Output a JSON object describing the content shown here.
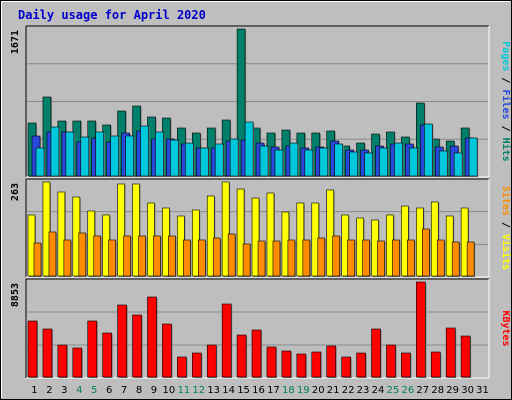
{
  "title": "Daily usage for April 2020",
  "colors": {
    "background": "#bebebe",
    "title": "#0000cc",
    "hits": "#00c8dc",
    "files": "#2848dc",
    "pages": "#00806a",
    "visits": "#ffff00",
    "sites": "#ff8c00",
    "kbytes": "#ff0000",
    "weekend_label": "#008060",
    "weekday_label": "#000000"
  },
  "chart_data": [
    {
      "type": "bar",
      "name": "hits-panel",
      "ymax": 1671,
      "ymax_label": "1671",
      "ylabel_parts": [
        {
          "text": "Pages",
          "color": "#00c8dc"
        },
        {
          "text": " / ",
          "color": "#000000"
        },
        {
          "text": "Files",
          "color": "#2848dc"
        },
        {
          "text": " / ",
          "color": "#000000"
        },
        {
          "text": "Hits",
          "color": "#00806a"
        }
      ],
      "categories": [
        "1",
        "2",
        "3",
        "4",
        "5",
        "6",
        "7",
        "8",
        "9",
        "10",
        "11",
        "12",
        "13",
        "14",
        "15",
        "16",
        "17",
        "18",
        "19",
        "20",
        "21",
        "22",
        "23",
        "24",
        "25",
        "26",
        "27",
        "28",
        "29",
        "30",
        "31"
      ],
      "weekend_days": [
        "4",
        "5",
        "11",
        "12",
        "18",
        "19",
        "25",
        "26"
      ],
      "series": [
        {
          "name": "Hits",
          "values": [
            600,
            900,
            630,
            630,
            620,
            580,
            740,
            800,
            670,
            660,
            550,
            490,
            550,
            640,
            1671,
            550,
            490,
            520,
            490,
            490,
            510,
            340,
            370,
            480,
            500,
            440,
            830,
            420,
            400,
            550,
            0
          ]
        },
        {
          "name": "Files",
          "values": [
            460,
            500,
            500,
            390,
            430,
            390,
            490,
            510,
            420,
            420,
            360,
            320,
            320,
            400,
            410,
            370,
            330,
            340,
            320,
            330,
            400,
            290,
            300,
            340,
            360,
            360,
            580,
            330,
            340,
            430,
            0
          ]
        },
        {
          "name": "Pages",
          "values": [
            320,
            560,
            500,
            440,
            500,
            450,
            450,
            570,
            500,
            410,
            380,
            320,
            360,
            420,
            610,
            340,
            300,
            380,
            290,
            320,
            360,
            270,
            260,
            320,
            380,
            320,
            590,
            280,
            260,
            430,
            0
          ]
        }
      ]
    },
    {
      "type": "bar",
      "name": "visits-panel",
      "ymax": 263,
      "ymax_label": "263",
      "ylabel_parts": [
        {
          "text": "Sites",
          "color": "#ff8c00"
        },
        {
          "text": " / ",
          "color": "#000000"
        },
        {
          "text": "Visits",
          "color": "#ffff00"
        }
      ],
      "categories": [
        "1",
        "2",
        "3",
        "4",
        "5",
        "6",
        "7",
        "8",
        "9",
        "10",
        "11",
        "12",
        "13",
        "14",
        "15",
        "16",
        "17",
        "18",
        "19",
        "20",
        "21",
        "22",
        "23",
        "24",
        "25",
        "26",
        "27",
        "28",
        "29",
        "30",
        "31"
      ],
      "series": [
        {
          "name": "Visits",
          "values": [
            170,
            262,
            236,
            222,
            182,
            170,
            258,
            258,
            205,
            190,
            168,
            186,
            224,
            263,
            244,
            218,
            232,
            180,
            204,
            204,
            240,
            172,
            162,
            156,
            172,
            196,
            190,
            206,
            168,
            190,
            0
          ]
        },
        {
          "name": "Sites",
          "values": [
            92,
            122,
            100,
            120,
            112,
            100,
            112,
            112,
            112,
            112,
            100,
            100,
            106,
            118,
            90,
            98,
            98,
            100,
            100,
            106,
            112,
            100,
            100,
            98,
            100,
            100,
            132,
            100,
            96,
            96,
            0
          ]
        }
      ]
    },
    {
      "type": "bar",
      "name": "kbytes-panel",
      "ymax": 8853,
      "ymax_label": "8853",
      "ylabel_parts": [
        {
          "text": "KBytes",
          "color": "#ff0000"
        }
      ],
      "categories": [
        "1",
        "2",
        "3",
        "4",
        "5",
        "6",
        "7",
        "8",
        "9",
        "10",
        "11",
        "12",
        "13",
        "14",
        "15",
        "16",
        "17",
        "18",
        "19",
        "20",
        "21",
        "22",
        "23",
        "24",
        "25",
        "26",
        "27",
        "28",
        "29",
        "30",
        "31"
      ],
      "series": [
        {
          "name": "KBytes",
          "values": [
            5240,
            4500,
            2940,
            2660,
            5230,
            4060,
            6700,
            5820,
            7450,
            4920,
            1840,
            2200,
            2980,
            6760,
            3940,
            4380,
            2780,
            2460,
            2160,
            2370,
            2890,
            1840,
            2270,
            4450,
            3020,
            2280,
            8853,
            2340,
            4570,
            3820,
            0
          ]
        }
      ]
    }
  ]
}
